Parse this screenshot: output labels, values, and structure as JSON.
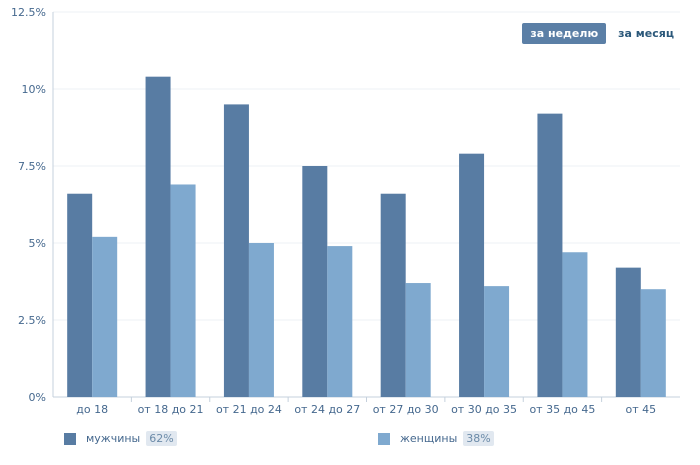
{
  "period_toggle": {
    "week_label": "за неделю",
    "month_label": "за месяц",
    "active": "week"
  },
  "legend": [
    {
      "name": "мужчины",
      "percent": "62%",
      "color": "#587ca3"
    },
    {
      "name": "женщины",
      "percent": "38%",
      "color": "#7fa9cf"
    }
  ],
  "chart_data": {
    "type": "bar",
    "categories": [
      "до 18",
      "от 18 до 21",
      "от 21 до 24",
      "от 24 до 27",
      "от 27 до 30",
      "от 30 до 35",
      "от 35 до 45",
      "от 45"
    ],
    "series": [
      {
        "name": "мужчины",
        "values": [
          6.6,
          10.4,
          9.5,
          7.5,
          6.6,
          7.9,
          9.2,
          4.2
        ],
        "color": "#587ca3"
      },
      {
        "name": "женщины",
        "values": [
          5.2,
          6.9,
          5.0,
          4.9,
          3.7,
          3.6,
          4.7,
          3.5
        ],
        "color": "#7fa9cf"
      }
    ],
    "yticks": [
      0,
      2.5,
      5,
      7.5,
      10,
      12.5
    ],
    "ytick_labels": [
      "0%",
      "2.5%",
      "5%",
      "7.5%",
      "10%",
      "12.5%"
    ],
    "ylim": [
      0,
      12.5
    ],
    "grid": true,
    "title": "",
    "xlabel": "",
    "ylabel": "",
    "legend_position": "bottom"
  }
}
